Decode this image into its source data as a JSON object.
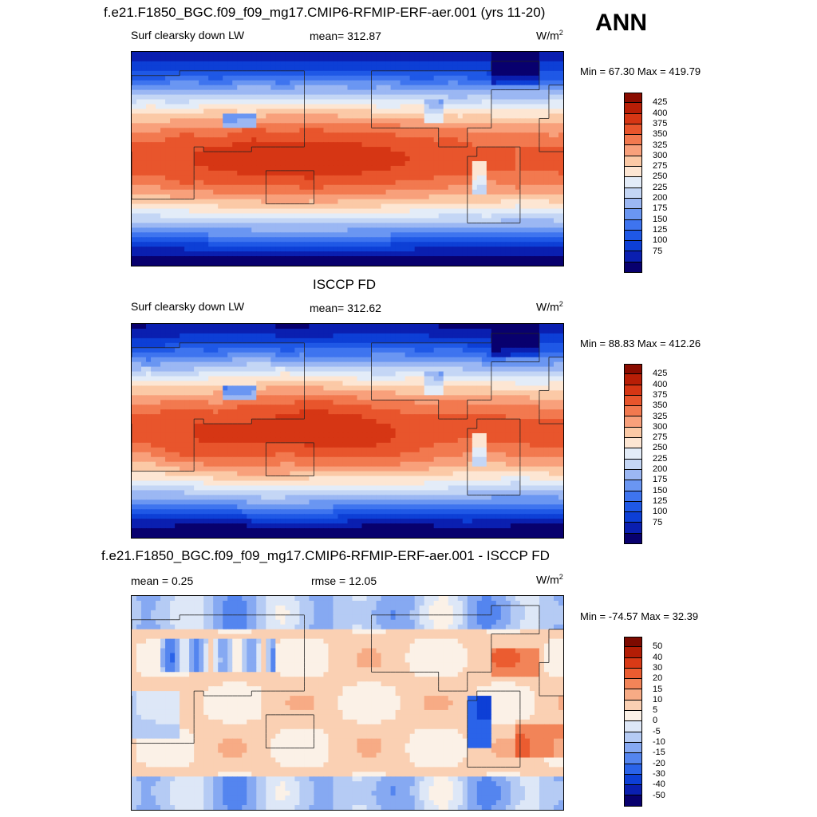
{
  "season": "ANN",
  "units_base": "W/m",
  "units_exp": "2",
  "colors": {
    "abs_scale": [
      "#08006e",
      "#0a1fb0",
      "#0d3fd6",
      "#1f58e6",
      "#3e74ef",
      "#6a96f2",
      "#9bb7f3",
      "#c4d6f5",
      "#e3ecf8",
      "#fde6d3",
      "#fbc9a6",
      "#f8a07b",
      "#f2794f",
      "#e8552c",
      "#d63614",
      "#b81e06",
      "#8a0c00"
    ],
    "diff_scale": [
      "#08006e",
      "#0a1fb0",
      "#0d3fd6",
      "#2a63e9",
      "#5485ef",
      "#86a9f2",
      "#b5cbf4",
      "#dde7f7",
      "#fbf1e7",
      "#fad0b3",
      "#f7ab85",
      "#f28458",
      "#eb5c30",
      "#d93a16",
      "#b31d05",
      "#7d0a00"
    ]
  },
  "chart_data": [
    {
      "type": "heatmap",
      "title": "f.e21.F1850_BGC.f09_f09_mg17.CMIP6-RFMIP-ERF-aer.001 (yrs 11-20)",
      "variable": "Surf clearsky down LW",
      "stat_label": "mean= 312.87",
      "mean": 312.87,
      "min_max_label": "Min =  67.30 Max = 419.79",
      "min": 67.3,
      "max": 419.79,
      "levels": [
        "425",
        "400",
        "375",
        "350",
        "325",
        "300",
        "275",
        "250",
        "225",
        "200",
        "175",
        "150",
        "125",
        "100",
        "75"
      ],
      "level_values": [
        75,
        100,
        125,
        150,
        175,
        200,
        225,
        250,
        275,
        300,
        325,
        350,
        375,
        400,
        425
      ]
    },
    {
      "type": "heatmap",
      "title": "ISCCP FD",
      "variable": "Surf clearsky down LW",
      "stat_label": "mean= 312.62",
      "mean": 312.62,
      "min_max_label": "Min =  88.83 Max = 412.26",
      "min": 88.83,
      "max": 412.26,
      "levels": [
        "425",
        "400",
        "375",
        "350",
        "325",
        "300",
        "275",
        "250",
        "225",
        "200",
        "175",
        "150",
        "125",
        "100",
        "75"
      ],
      "level_values": [
        75,
        100,
        125,
        150,
        175,
        200,
        225,
        250,
        275,
        300,
        325,
        350,
        375,
        400,
        425
      ]
    },
    {
      "type": "heatmap",
      "title": "f.e21.F1850_BGC.f09_f09_mg17.CMIP6-RFMIP-ERF-aer.001 - ISCCP FD",
      "mean_label": "mean =   0.25",
      "mean": 0.25,
      "rmse_label": "rmse =  12.05",
      "rmse": 12.05,
      "min_max_label": "Min = -74.57 Max =  32.39",
      "min": -74.57,
      "max": 32.39,
      "levels": [
        "50",
        "40",
        "30",
        "20",
        "15",
        "10",
        "5",
        "0",
        "-5",
        "-10",
        "-15",
        "-20",
        "-30",
        "-40",
        "-50"
      ],
      "level_values": [
        -50,
        -40,
        -30,
        -20,
        -15,
        -10,
        -5,
        0,
        5,
        10,
        15,
        20,
        30,
        40,
        50
      ]
    }
  ]
}
